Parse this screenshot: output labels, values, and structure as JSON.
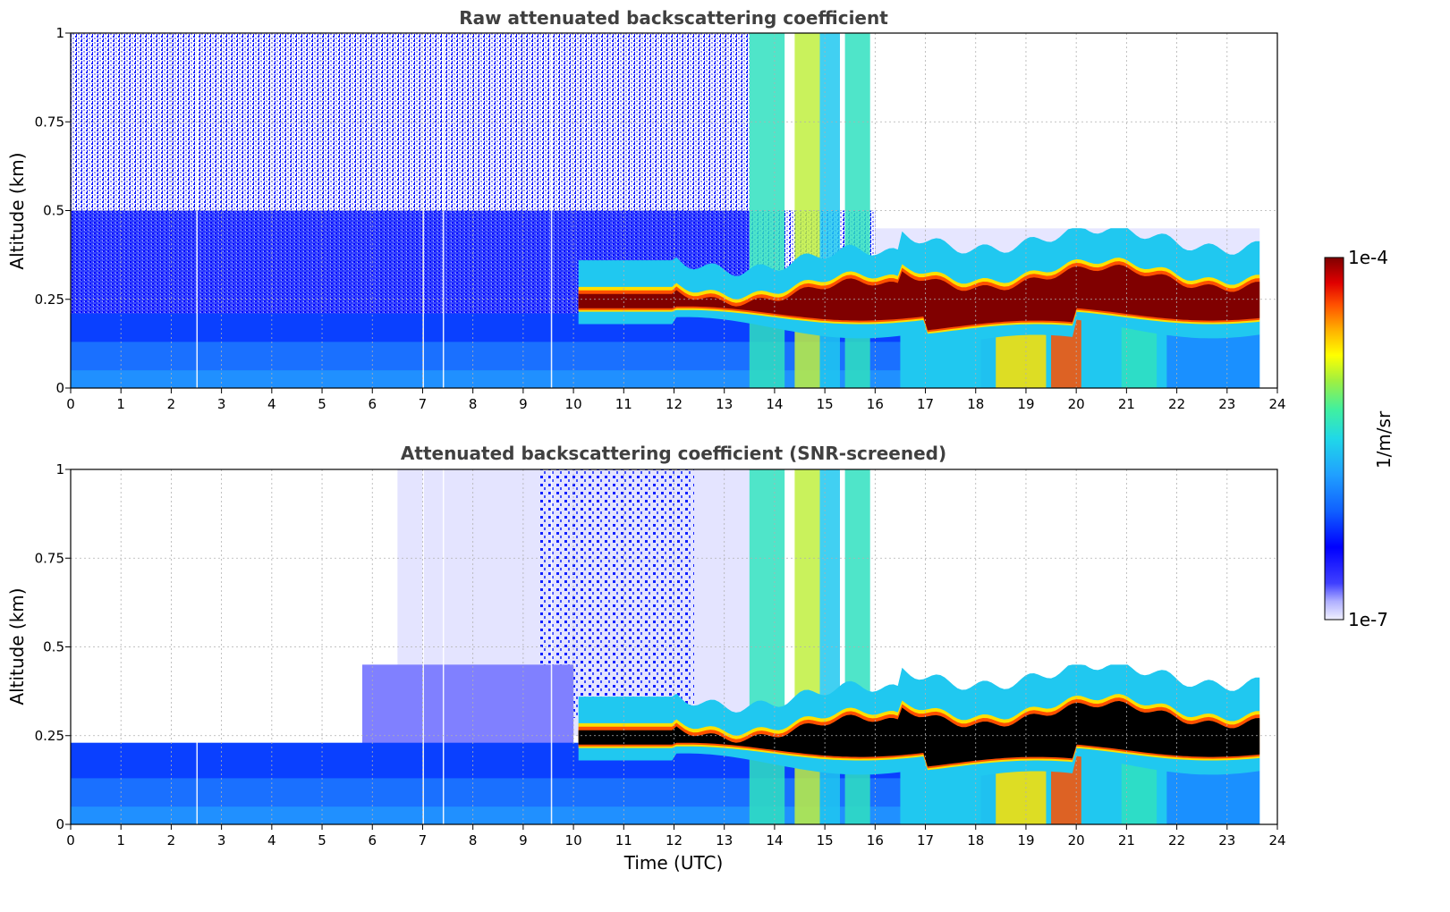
{
  "chart_data": [
    {
      "type": "heatmap",
      "title": "Raw attenuated backscattering coefficient",
      "xlabel": "",
      "ylabel": "Altitude (km)",
      "xlim": [
        0,
        24
      ],
      "ylim": [
        0,
        1
      ],
      "x_ticks": [
        "0",
        "1",
        "2",
        "3",
        "4",
        "5",
        "6",
        "7",
        "8",
        "9",
        "10",
        "11",
        "12",
        "13",
        "14",
        "15",
        "16",
        "17",
        "18",
        "19",
        "20",
        "21",
        "22",
        "23",
        "24"
      ],
      "y_ticks": [
        "0",
        "0.25",
        "0.5",
        "0.75",
        "1"
      ],
      "grid": true,
      "data_end_time": 23.65,
      "features": {
        "fog_layer_top_km": 0.2,
        "stratus_layer": {
          "start_time": 10.1,
          "end_time": 23.65,
          "base_km": 0.22,
          "top_km": 0.3
        },
        "precipitation_columns": [
          [
            13.5,
            14.2
          ],
          [
            14.4,
            14.9
          ],
          [
            15.4,
            15.9
          ],
          [
            18.1,
            18.4
          ],
          [
            19.5,
            20.1
          ],
          [
            20.9,
            21.6
          ]
        ]
      }
    },
    {
      "type": "heatmap",
      "title": "Attenuated backscattering coefficient (SNR-screened)",
      "xlabel": "Time (UTC)",
      "ylabel": "Altitude (km)",
      "xlim": [
        0,
        24
      ],
      "ylim": [
        0,
        1
      ],
      "x_ticks": [
        "0",
        "1",
        "2",
        "3",
        "4",
        "5",
        "6",
        "7",
        "8",
        "9",
        "10",
        "11",
        "12",
        "13",
        "14",
        "15",
        "16",
        "17",
        "18",
        "19",
        "20",
        "21",
        "22",
        "23",
        "24"
      ],
      "y_ticks": [
        "0",
        "0.25",
        "0.5",
        "0.75",
        "1"
      ],
      "grid": true,
      "data_end_time": 23.65,
      "features": {
        "saturated_core": {
          "start_time": 10.1,
          "end_time": 23.65,
          "base_km": 0.2,
          "top_km": 0.28
        }
      }
    }
  ],
  "colorbar": {
    "label": "1/m/sr",
    "max_label": "1e-4",
    "min_label": "1e-7",
    "scale": "log",
    "range": [
      1e-07,
      0.0001
    ],
    "colormap": [
      "#e8e8ff",
      "#b0b0ff",
      "#4040ff",
      "#0000ff",
      "#0a50ff",
      "#1a8cff",
      "#20c0f0",
      "#30e0c0",
      "#60f080",
      "#c0f040",
      "#ffe000",
      "#ffa000",
      "#ff5000",
      "#e00000",
      "#800000"
    ],
    "saturated_color": "#000000"
  }
}
